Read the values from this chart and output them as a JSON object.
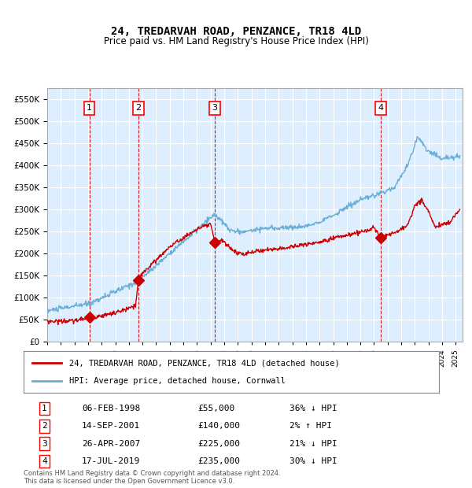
{
  "title": "24, TREDARVAH ROAD, PENZANCE, TR18 4LD",
  "subtitle": "Price paid vs. HM Land Registry's House Price Index (HPI)",
  "legend_line1": "24, TREDARVAH ROAD, PENZANCE, TR18 4LD (detached house)",
  "legend_line2": "HPI: Average price, detached house, Cornwall",
  "footer_line1": "Contains HM Land Registry data © Crown copyright and database right 2024.",
  "footer_line2": "This data is licensed under the Open Government Licence v3.0.",
  "transactions": [
    {
      "num": 1,
      "date": "06-FEB-1998",
      "price": 55000,
      "pct": "36%",
      "dir": "↓",
      "year": 1998.1
    },
    {
      "num": 2,
      "date": "14-SEP-2001",
      "price": 140000,
      "pct": "2%",
      "dir": "↑",
      "year": 2001.7
    },
    {
      "num": 3,
      "date": "26-APR-2007",
      "price": 225000,
      "pct": "21%",
      "dir": "↓",
      "year": 2007.3
    },
    {
      "num": 4,
      "date": "17-JUL-2019",
      "price": 235000,
      "pct": "30%",
      "dir": "↓",
      "year": 2019.5
    }
  ],
  "hpi_color": "#6baed6",
  "price_color": "#cc0000",
  "dashed_color": "#cc0000",
  "bg_color": "#ddeeff",
  "grid_color": "#ffffff",
  "ylim": [
    0,
    575000
  ],
  "xlim_start": 1995.0,
  "xlim_end": 2025.5
}
